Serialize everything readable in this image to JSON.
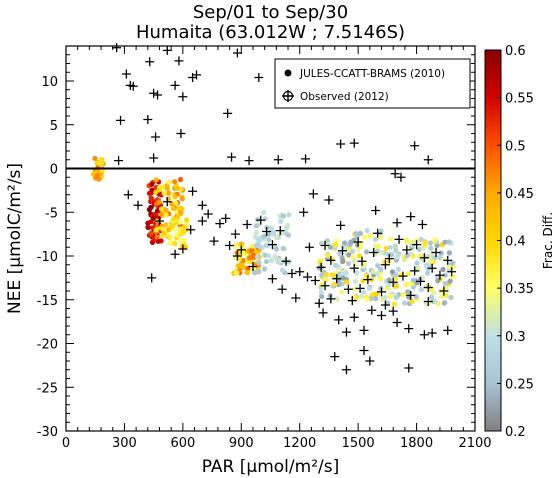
{
  "title_line1": "Sep/01 to Sep/30",
  "title_line2": "Humaita (63.012W ; 7.5146S)",
  "chart_data": {
    "type": "scatter",
    "title": "Sep/01 to Sep/30 Humaita (63.012W ; 7.5146S)",
    "xlabel": "PAR [μmol/m²/s]",
    "ylabel": "NEE [μmolC/m²/s]",
    "xlim": [
      0,
      2100
    ],
    "ylim": [
      -30,
      14
    ],
    "xticks": [
      0,
      300,
      600,
      900,
      1200,
      1500,
      1800,
      2100
    ],
    "yticks": [
      -30,
      -25,
      -20,
      -15,
      -10,
      -5,
      0,
      5,
      10
    ],
    "zero_line": true,
    "legend": {
      "position": "top-right",
      "entries": [
        {
          "label": "JULES-CCATT-BRAMS (2010)",
          "marker": "filled-circle"
        },
        {
          "label": "Observed (2012)",
          "marker": "plus"
        }
      ]
    },
    "colorbar": {
      "label": "Frac. Diff.",
      "range": [
        0.2,
        0.6
      ],
      "ticks": [
        0.2,
        0.25,
        0.3,
        0.35,
        0.4,
        0.45,
        0.5,
        0.55,
        0.6
      ],
      "colors": [
        "#808080",
        "#a8c4d4",
        "#bfe0e6",
        "#ffff66",
        "#ffd700",
        "#ffaa00",
        "#ff5000",
        "#d40000",
        "#8b0000"
      ]
    },
    "model_clusters": [
      {
        "x": [
          140,
          190
        ],
        "y": [
          -1.5,
          1.5
        ],
        "frac": [
          0.38,
          0.5
        ],
        "n": 25
      },
      {
        "x": [
          420,
          490
        ],
        "y": [
          -8.5,
          -1.5
        ],
        "frac": [
          0.5,
          0.6
        ],
        "n": 70
      },
      {
        "x": [
          460,
          600
        ],
        "y": [
          -8,
          -1
        ],
        "frac": [
          0.36,
          0.5
        ],
        "n": 70
      },
      {
        "x": [
          530,
          620
        ],
        "y": [
          -9,
          -5.5
        ],
        "frac": [
          0.33,
          0.42
        ],
        "n": 35
      },
      {
        "x": [
          860,
          1000
        ],
        "y": [
          -12,
          -8.5
        ],
        "frac": [
          0.34,
          0.5
        ],
        "n": 60
      },
      {
        "x": [
          970,
          1150
        ],
        "y": [
          -12,
          -5
        ],
        "frac": [
          0.25,
          0.32
        ],
        "n": 60
      },
      {
        "x": [
          1300,
          1450
        ],
        "y": [
          -15,
          -8
        ],
        "frac": [
          0.22,
          0.4
        ],
        "n": 70
      },
      {
        "x": [
          1450,
          1650
        ],
        "y": [
          -15,
          -7
        ],
        "frac": [
          0.22,
          0.4
        ],
        "n": 80
      },
      {
        "x": [
          1650,
          1990
        ],
        "y": [
          -15.5,
          -8
        ],
        "frac": [
          0.22,
          0.4
        ],
        "n": 140
      }
    ],
    "observed": [
      {
        "x": 260,
        "y": 13.8
      },
      {
        "x": 310,
        "y": 10.8
      },
      {
        "x": 330,
        "y": 9.5
      },
      {
        "x": 345,
        "y": 9.4
      },
      {
        "x": 430,
        "y": 12.2
      },
      {
        "x": 450,
        "y": 8.6
      },
      {
        "x": 470,
        "y": 8.4
      },
      {
        "x": 520,
        "y": 13.5
      },
      {
        "x": 560,
        "y": 9.5
      },
      {
        "x": 580,
        "y": 12.3
      },
      {
        "x": 600,
        "y": 8.2
      },
      {
        "x": 650,
        "y": 10.4
      },
      {
        "x": 670,
        "y": 10.7
      },
      {
        "x": 880,
        "y": 13.2
      },
      {
        "x": 990,
        "y": 10.4
      },
      {
        "x": 280,
        "y": 5.5
      },
      {
        "x": 420,
        "y": 5.6
      },
      {
        "x": 460,
        "y": 3.6
      },
      {
        "x": 590,
        "y": 4.0
      },
      {
        "x": 830,
        "y": 6.3
      },
      {
        "x": 270,
        "y": 0.9
      },
      {
        "x": 450,
        "y": 1.2
      },
      {
        "x": 850,
        "y": 1.3
      },
      {
        "x": 940,
        "y": 0.9
      },
      {
        "x": 1090,
        "y": 1.0
      },
      {
        "x": 1230,
        "y": 1.1
      },
      {
        "x": 1410,
        "y": 2.8
      },
      {
        "x": 1480,
        "y": 2.9
      },
      {
        "x": 1790,
        "y": 2.6
      },
      {
        "x": 1860,
        "y": 1.0
      },
      {
        "x": 1220,
        "y": -5.0
      },
      {
        "x": 1270,
        "y": -2.9
      },
      {
        "x": 1350,
        "y": -3.6
      },
      {
        "x": 1690,
        "y": -0.6
      },
      {
        "x": 1720,
        "y": -1.0
      },
      {
        "x": 320,
        "y": -3.0
      },
      {
        "x": 370,
        "y": -4.2
      },
      {
        "x": 650,
        "y": -2.6
      },
      {
        "x": 700,
        "y": -4.2
      },
      {
        "x": 440,
        "y": -12.5
      },
      {
        "x": 1180,
        "y": -14.8
      },
      {
        "x": 1320,
        "y": -16.5
      },
      {
        "x": 1400,
        "y": -17.3
      },
      {
        "x": 1440,
        "y": -18.7
      },
      {
        "x": 1380,
        "y": -21.5
      },
      {
        "x": 1440,
        "y": -23.0
      },
      {
        "x": 1530,
        "y": -20.8
      },
      {
        "x": 1530,
        "y": -18.5
      },
      {
        "x": 1560,
        "y": -22.0
      },
      {
        "x": 1620,
        "y": -16.8
      },
      {
        "x": 1760,
        "y": -18.3
      },
      {
        "x": 1840,
        "y": -19.0
      },
      {
        "x": 1880,
        "y": -18.8
      },
      {
        "x": 1960,
        "y": -18.5
      },
      {
        "x": 1760,
        "y": -22.8
      },
      {
        "x": 1680,
        "y": -16.3
      },
      {
        "x": 1570,
        "y": -16.2
      },
      {
        "x": 1480,
        "y": -17.0
      },
      {
        "x": 1300,
        "y": -15.4
      },
      {
        "x": 1110,
        "y": -13.8
      },
      {
        "x": 640,
        "y": -7.0
      },
      {
        "x": 700,
        "y": -6.0
      },
      {
        "x": 730,
        "y": -5.2
      },
      {
        "x": 760,
        "y": -8.3
      },
      {
        "x": 790,
        "y": -6.3
      },
      {
        "x": 820,
        "y": -5.7
      },
      {
        "x": 870,
        "y": -7.5
      },
      {
        "x": 900,
        "y": -9.3
      },
      {
        "x": 930,
        "y": -6.4
      },
      {
        "x": 1000,
        "y": -5.9
      },
      {
        "x": 1030,
        "y": -7.2
      },
      {
        "x": 1060,
        "y": -8.7
      },
      {
        "x": 1100,
        "y": -7.1
      },
      {
        "x": 1130,
        "y": -10.6
      },
      {
        "x": 1160,
        "y": -12.0
      },
      {
        "x": 1200,
        "y": -11.8
      },
      {
        "x": 1240,
        "y": -12.4
      },
      {
        "x": 1280,
        "y": -12.8
      },
      {
        "x": 1310,
        "y": -11.3
      },
      {
        "x": 1330,
        "y": -8.8
      },
      {
        "x": 1360,
        "y": -10.5
      },
      {
        "x": 1390,
        "y": -12.6
      },
      {
        "x": 1420,
        "y": -9.4
      },
      {
        "x": 1450,
        "y": -13.8
      },
      {
        "x": 1480,
        "y": -11.4
      },
      {
        "x": 1500,
        "y": -8.4
      },
      {
        "x": 1520,
        "y": -10.6
      },
      {
        "x": 1550,
        "y": -12.7
      },
      {
        "x": 1580,
        "y": -9.6
      },
      {
        "x": 1600,
        "y": -7.4
      },
      {
        "x": 1620,
        "y": -14.1
      },
      {
        "x": 1640,
        "y": -11.0
      },
      {
        "x": 1660,
        "y": -10.3
      },
      {
        "x": 1680,
        "y": -13.0
      },
      {
        "x": 1700,
        "y": -6.2
      },
      {
        "x": 1710,
        "y": -8.1
      },
      {
        "x": 1730,
        "y": -12.3
      },
      {
        "x": 1750,
        "y": -9.3
      },
      {
        "x": 1770,
        "y": -14.5
      },
      {
        "x": 1790,
        "y": -11.7
      },
      {
        "x": 1800,
        "y": -8.7
      },
      {
        "x": 1820,
        "y": -12.9
      },
      {
        "x": 1840,
        "y": -10.2
      },
      {
        "x": 1860,
        "y": -13.6
      },
      {
        "x": 1880,
        "y": -11.4
      },
      {
        "x": 1900,
        "y": -9.6
      },
      {
        "x": 1920,
        "y": -12.2
      },
      {
        "x": 1940,
        "y": -14.0
      },
      {
        "x": 1960,
        "y": -10.5
      },
      {
        "x": 1980,
        "y": -11.8
      },
      {
        "x": 1770,
        "y": -5.5
      },
      {
        "x": 1830,
        "y": -6.4
      },
      {
        "x": 1590,
        "y": -4.8
      },
      {
        "x": 1410,
        "y": -6.5
      },
      {
        "x": 1360,
        "y": -14.9
      },
      {
        "x": 1250,
        "y": -9.0
      },
      {
        "x": 1060,
        "y": -12.6
      },
      {
        "x": 960,
        "y": -11.2
      },
      {
        "x": 880,
        "y": -10.0
      },
      {
        "x": 840,
        "y": -8.8
      },
      {
        "x": 600,
        "y": -9.2
      },
      {
        "x": 560,
        "y": -9.8
      },
      {
        "x": 480,
        "y": -6.0
      },
      {
        "x": 520,
        "y": -3.8
      },
      {
        "x": 1330,
        "y": -13.4
      },
      {
        "x": 1470,
        "y": -15.1
      },
      {
        "x": 1640,
        "y": -15.6
      },
      {
        "x": 1860,
        "y": -15.2
      },
      {
        "x": 1700,
        "y": -17.6
      },
      {
        "x": 1510,
        "y": -13.7
      }
    ]
  }
}
